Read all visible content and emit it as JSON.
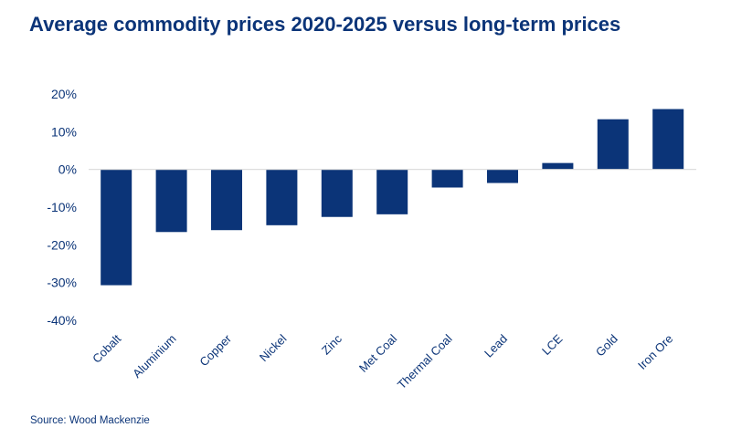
{
  "chart_data": {
    "type": "bar",
    "title": "Average commodity prices 2020-2025  versus long-term prices",
    "source": "Source: Wood Mackenzie",
    "categories": [
      "Cobalt",
      "Aluminium",
      "Copper",
      "Nickel",
      "Zinc",
      "Met Coal",
      "Thermal Coal",
      "Lead",
      "LCE",
      "Gold",
      "Iron Ore"
    ],
    "values": [
      -30.7,
      -16.6,
      -16.1,
      -14.8,
      -12.6,
      -11.9,
      -4.8,
      -3.6,
      1.7,
      13.3,
      16.0
    ],
    "unit": "%",
    "ylim": [
      -40,
      20
    ],
    "yticks": [
      20,
      10,
      0,
      -10,
      -20,
      -30,
      -40
    ],
    "ytick_labels": [
      "20%",
      "10%",
      "0%",
      "-10%",
      "-20%",
      "-30%",
      "-40%"
    ],
    "grid": false,
    "bar_color": "#0b3478",
    "zero_line_color": "#d9d9d9"
  }
}
